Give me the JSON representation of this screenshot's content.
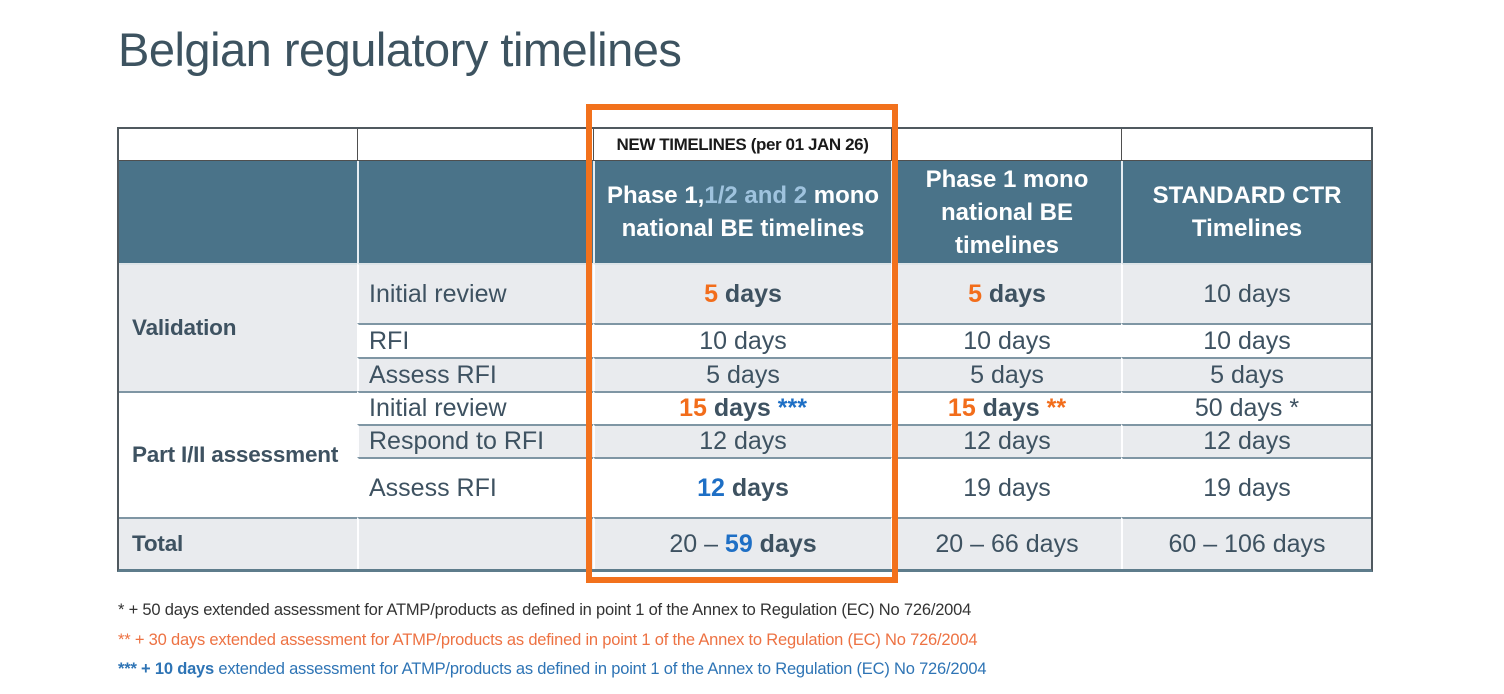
{
  "slide_title": "Belgian regulatory timelines",
  "table": {
    "banner": "NEW TIMELINES (per 01 JAN 26)",
    "col_headers": {
      "phase12": {
        "prefix": "Phase 1,",
        "highlight": "1/2 and 2",
        "suffix": " mono national BE timelines"
      },
      "phase1_mono": "Phase 1 mono national BE timelines",
      "standard_ctr": "STANDARD CTR Timelines"
    },
    "groups": [
      {
        "label": "Validation",
        "span": 3,
        "shade": "grey"
      },
      {
        "label": "Part I/II assessment",
        "span": 3,
        "shade": "white"
      }
    ],
    "body_rows": [
      {
        "sub": "Initial review",
        "shade": "grey",
        "cells": [
          {
            "parts": [
              {
                "t": "5",
                "s": "o"
              },
              {
                "t": " days",
                "s": "d"
              }
            ]
          },
          {
            "parts": [
              {
                "t": "5",
                "s": "o"
              },
              {
                "t": " days",
                "s": "d"
              }
            ]
          },
          {
            "parts": [
              {
                "t": "10 days",
                "s": "r"
              }
            ]
          }
        ]
      },
      {
        "sub": "RFI",
        "shade": "white",
        "cells": [
          {
            "parts": [
              {
                "t": "10 days",
                "s": "r"
              }
            ]
          },
          {
            "parts": [
              {
                "t": "10 days",
                "s": "r"
              }
            ]
          },
          {
            "parts": [
              {
                "t": "10 days",
                "s": "r"
              }
            ]
          }
        ]
      },
      {
        "sub": "Assess RFI",
        "shade": "grey",
        "cells": [
          {
            "parts": [
              {
                "t": "5 days",
                "s": "r"
              }
            ]
          },
          {
            "parts": [
              {
                "t": "5 days",
                "s": "r"
              }
            ]
          },
          {
            "parts": [
              {
                "t": "5 days",
                "s": "r"
              }
            ]
          }
        ]
      },
      {
        "sub": "Initial review",
        "shade": "white",
        "cells": [
          {
            "parts": [
              {
                "t": "15",
                "s": "o"
              },
              {
                "t": " days ",
                "s": "d"
              },
              {
                "t": "***",
                "s": "b"
              }
            ]
          },
          {
            "parts": [
              {
                "t": "15",
                "s": "o"
              },
              {
                "t": " days ",
                "s": "d"
              },
              {
                "t": "**",
                "s": "o"
              }
            ]
          },
          {
            "parts": [
              {
                "t": "50 days *",
                "s": "r"
              }
            ]
          }
        ]
      },
      {
        "sub": "Respond to RFI",
        "shade": "grey",
        "cells": [
          {
            "parts": [
              {
                "t": "12 days",
                "s": "r"
              }
            ]
          },
          {
            "parts": [
              {
                "t": "12 days",
                "s": "r"
              }
            ]
          },
          {
            "parts": [
              {
                "t": "12 days",
                "s": "r"
              }
            ]
          }
        ]
      },
      {
        "sub": "Assess RFI",
        "shade": "white",
        "cells": [
          {
            "parts": [
              {
                "t": "12",
                "s": "b"
              },
              {
                "t": " days",
                "s": "d"
              }
            ]
          },
          {
            "parts": [
              {
                "t": "19 days",
                "s": "r"
              }
            ]
          },
          {
            "parts": [
              {
                "t": "19 days",
                "s": "r"
              }
            ]
          }
        ]
      }
    ],
    "total_row": {
      "label": "Total",
      "shade": "grey",
      "cells": [
        {
          "parts": [
            {
              "t": "20 – ",
              "s": "r"
            },
            {
              "t": "59",
              "s": "b"
            },
            {
              "t": " days",
              "s": "d"
            }
          ]
        },
        {
          "parts": [
            {
              "t": "20 – 66 days",
              "s": "r"
            }
          ]
        },
        {
          "parts": [
            {
              "t": "60 – 106 days",
              "s": "r"
            }
          ]
        }
      ]
    }
  },
  "footnotes": [
    {
      "bold": "",
      "text": "* + 50 days extended assessment for ATMP/products as defined in point 1 of the Annex to Regulation (EC) No 726/2004"
    },
    {
      "bold": "",
      "text": "** + 30 days extended assessment for ATMP/products as defined in point 1 of the Annex to Regulation (EC) No 726/2004"
    },
    {
      "bold": "*** + 10 days",
      "text": " extended assessment for ATMP/products as defined in point 1 of the Annex to Regulation (EC) No 726/2004"
    }
  ],
  "colors": {
    "title_text": "#3d5360",
    "table_text": "#3e5261",
    "header_bg": "#4a7389",
    "header_text": "#ffffff",
    "header_highlight": "#9fc3de",
    "accent_orange": "#f26d1b",
    "accent_blue": "#1e6fc5",
    "row_shade": "#e9ebee",
    "separator": "#7f96a4",
    "outer_border": "#50595f",
    "bottom_border": "#5e7c8b",
    "highlight_box": "#f2711c",
    "banner_text": "#1a1a1a",
    "footnote_dark": "#333333",
    "footnote_orange": "#ed7243",
    "footnote_blue": "#2e74b5"
  }
}
